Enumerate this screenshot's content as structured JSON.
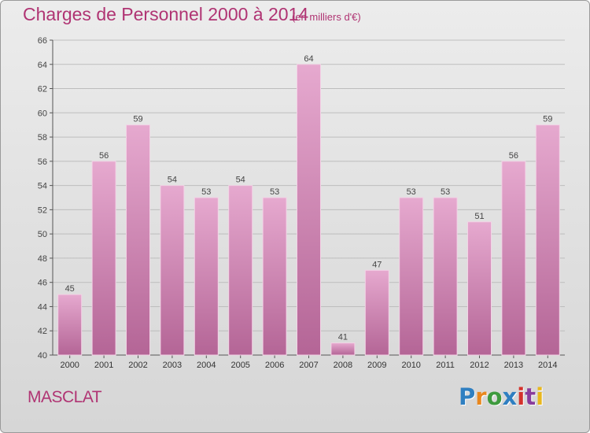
{
  "title": "Charges de Personnel 2000 à 2014",
  "unit": "(en milliers d'€)",
  "commune": "MASCLAT",
  "logo": {
    "letters": [
      "P",
      "r",
      "o",
      "x",
      "i",
      "t",
      "i"
    ],
    "colors": [
      "#2f7fc1",
      "#e8871e",
      "#3e9a3e",
      "#2f7fc1",
      "#d4322c",
      "#8a3c9c",
      "#e8b71e"
    ]
  },
  "colors": {
    "accent": "#b03473",
    "bar_top": "#e6a9cf",
    "bar_bottom": "#b46596",
    "grid": "#bdbdbd"
  },
  "chart_data": {
    "type": "bar",
    "title": "Charges de Personnel 2000 à 2014",
    "subtitle": "(en milliers d'€)",
    "categories": [
      "2000",
      "2001",
      "2002",
      "2003",
      "2004",
      "2005",
      "2006",
      "2007",
      "2008",
      "2009",
      "2010",
      "2011",
      "2012",
      "2013",
      "2014"
    ],
    "values": [
      45,
      56,
      59,
      54,
      53,
      54,
      53,
      64,
      41,
      47,
      53,
      53,
      51,
      56,
      59
    ],
    "ylim": [
      40,
      66
    ],
    "yticks": [
      40,
      42,
      44,
      46,
      48,
      50,
      52,
      54,
      56,
      58,
      60,
      62,
      64,
      66
    ],
    "grid": true,
    "data_labels": true
  }
}
